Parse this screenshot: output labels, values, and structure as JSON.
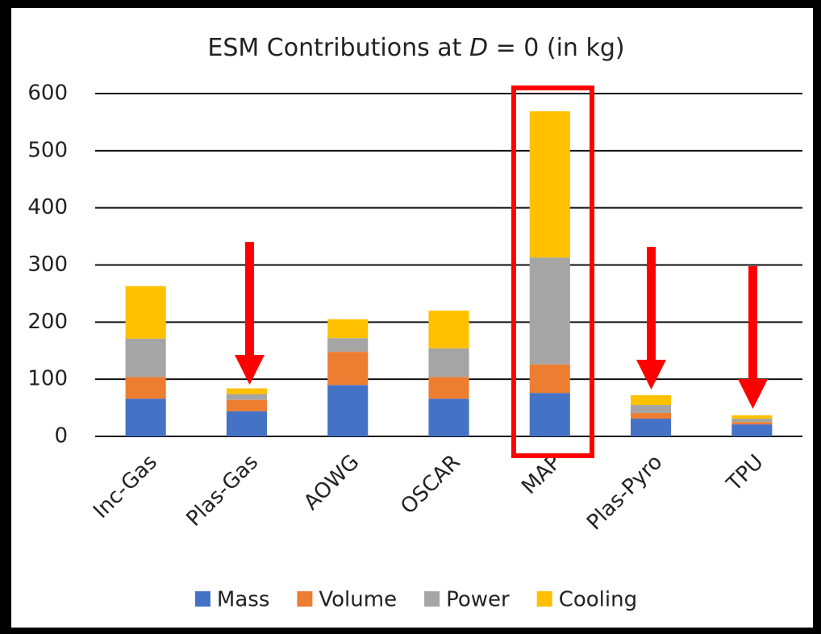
{
  "chart_data": {
    "type": "stacked_bar",
    "title": {
      "prefix": "ESM Contributions at ",
      "variable": "D",
      "suffix": " = 0 (in kg)"
    },
    "categories": [
      "Inc-Gas",
      "Plas-Gas",
      "AOWG",
      "OSCAR",
      "MAP",
      "Plas-Pyro",
      "TPU"
    ],
    "series": [
      {
        "name": "Mass",
        "color": "#4472c4",
        "values": [
          66,
          44,
          90,
          66,
          76,
          31,
          21
        ]
      },
      {
        "name": "Volume",
        "color": "#ed7d31",
        "values": [
          38,
          20,
          58,
          38,
          50,
          10,
          4
        ]
      },
      {
        "name": "Power",
        "color": "#a5a5a5",
        "values": [
          67,
          10,
          24,
          50,
          187,
          14,
          6
        ]
      },
      {
        "name": "Cooling",
        "color": "#ffc000",
        "values": [
          92,
          10,
          33,
          66,
          256,
          17,
          6
        ]
      }
    ],
    "ylim": [
      0,
      600
    ],
    "yticks": [
      0,
      100,
      200,
      300,
      400,
      500,
      600
    ],
    "grid": true,
    "legend": "bottom"
  }
}
